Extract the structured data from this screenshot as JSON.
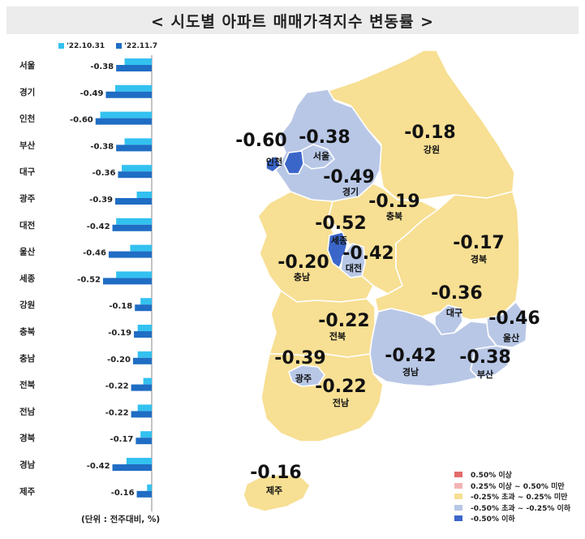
{
  "title": "< 시도별 아파트 매매가격지수 변동률 >",
  "unit_note": "(단위 : 전주대비, %)",
  "colors": {
    "prev_week": "#33c1f0",
    "curr_week": "#1f6dc4",
    "cat_above_050": "#e26b6b",
    "cat_025_050": "#f2b4b4",
    "cat_mid": "#f7df93",
    "cat_neg_050_025": "#b8c7e6",
    "cat_below_neg050": "#3b66c9"
  },
  "map_legend": [
    {
      "label": "0.50% 이상",
      "color_key": "cat_above_050"
    },
    {
      "label": "0.25% 이상 ~ 0.50% 미만",
      "color_key": "cat_025_050"
    },
    {
      "label": "-0.25% 초과 ~ 0.25% 미만",
      "color_key": "cat_mid"
    },
    {
      "label": "-0.50% 초과 ~ -0.25% 이하",
      "color_key": "cat_neg_050_025"
    },
    {
      "label": "-0.50% 이하",
      "color_key": "cat_below_neg050"
    }
  ],
  "chart_data": [
    {
      "type": "bar",
      "orientation": "horizontal",
      "categories": [
        "서울",
        "경기",
        "인천",
        "부산",
        "대구",
        "광주",
        "대전",
        "울산",
        "세종",
        "강원",
        "충북",
        "충남",
        "전북",
        "전남",
        "경북",
        "경남",
        "제주"
      ],
      "series": [
        {
          "name": "'22.10.31",
          "values": [
            -0.29,
            -0.39,
            -0.55,
            -0.29,
            -0.32,
            -0.16,
            -0.38,
            -0.23,
            -0.38,
            -0.12,
            -0.15,
            -0.15,
            -0.09,
            -0.15,
            -0.12,
            -0.27,
            -0.05
          ]
        },
        {
          "name": "'22.11.7",
          "values": [
            -0.38,
            -0.49,
            -0.6,
            -0.38,
            -0.36,
            -0.39,
            -0.42,
            -0.46,
            -0.52,
            -0.18,
            -0.19,
            -0.2,
            -0.22,
            -0.22,
            -0.17,
            -0.42,
            -0.16
          ]
        }
      ],
      "data_labels": [
        "-0.38",
        "-0.49",
        "-0.60",
        "-0.38",
        "-0.36",
        "-0.39",
        "-0.42",
        "-0.46",
        "-0.52",
        "-0.18",
        "-0.19",
        "-0.20",
        "-0.22",
        "-0.22",
        "-0.17",
        "-0.42",
        "-0.16"
      ],
      "xlim": [
        -0.65,
        0
      ]
    },
    {
      "type": "choropleth",
      "regions": [
        {
          "name": "서울",
          "value": "-0.38",
          "color_key": "cat_neg_050_025"
        },
        {
          "name": "인천",
          "value": "-0.60",
          "color_key": "cat_below_neg050"
        },
        {
          "name": "경기",
          "value": "-0.49",
          "color_key": "cat_neg_050_025"
        },
        {
          "name": "강원",
          "value": "-0.18",
          "color_key": "cat_mid"
        },
        {
          "name": "충북",
          "value": "-0.19",
          "color_key": "cat_mid"
        },
        {
          "name": "세종",
          "value": "-0.52",
          "color_key": "cat_below_neg050"
        },
        {
          "name": "대전",
          "value": "-0.42",
          "color_key": "cat_neg_050_025"
        },
        {
          "name": "충남",
          "value": "-0.20",
          "color_key": "cat_mid"
        },
        {
          "name": "경북",
          "value": "-0.17",
          "color_key": "cat_mid"
        },
        {
          "name": "대구",
          "value": "-0.36",
          "color_key": "cat_neg_050_025"
        },
        {
          "name": "전북",
          "value": "-0.22",
          "color_key": "cat_mid"
        },
        {
          "name": "울산",
          "value": "-0.46",
          "color_key": "cat_neg_050_025"
        },
        {
          "name": "경남",
          "value": "-0.42",
          "color_key": "cat_neg_050_025"
        },
        {
          "name": "부산",
          "value": "-0.38",
          "color_key": "cat_neg_050_025"
        },
        {
          "name": "광주",
          "value": "-0.39",
          "color_key": "cat_neg_050_025"
        },
        {
          "name": "전남",
          "value": "-0.22",
          "color_key": "cat_mid"
        },
        {
          "name": "제주",
          "value": "-0.16",
          "color_key": "cat_mid"
        }
      ]
    }
  ]
}
